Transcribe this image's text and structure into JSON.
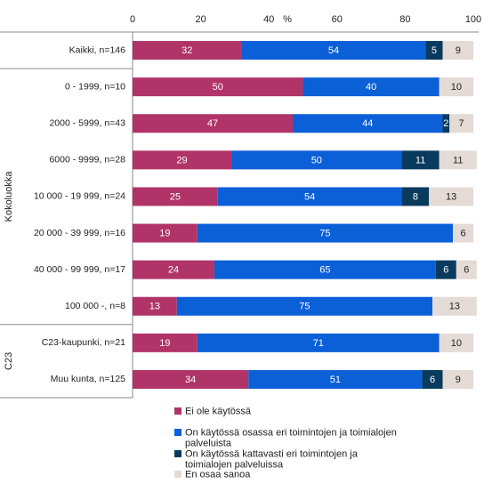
{
  "chart_data": {
    "type": "bar",
    "orientation": "horizontal",
    "stacked": true,
    "title": "",
    "xlabel": "%",
    "ylabel": "",
    "xlim": [
      0,
      100
    ],
    "x_ticks": [
      "0",
      "20",
      "40",
      "60",
      "80",
      "100"
    ],
    "grid": false,
    "legend_position": "bottom",
    "categories": [
      "Kaikki, n=146",
      "0 - 1999, n=10",
      "2000 - 5999, n=43",
      "6000 - 9999, n=28",
      "10 000 - 19 999, n=24",
      "20 000 - 39 999, n=16",
      "40 000 - 99 999, n=17",
      "100 000 -, n=8",
      "C23-kaupunki, n=21",
      "Muu kunta, n=125"
    ],
    "groups": [
      {
        "label": "Kokoluokka",
        "from": 1,
        "to": 7
      },
      {
        "label": "C23",
        "from": 8,
        "to": 9
      }
    ],
    "series": [
      {
        "name": "Ei ole käytössä",
        "color": "#b03468",
        "label_color": "#ffffff",
        "values": [
          32,
          50,
          47,
          29,
          25,
          19,
          24,
          13,
          19,
          34
        ]
      },
      {
        "name": "On käytössä osassa eri toimintojen ja toimialojen palveluista",
        "color": "#0b5fd7",
        "label_color": "#ffffff",
        "values": [
          54,
          40,
          44,
          50,
          54,
          75,
          65,
          75,
          71,
          51
        ]
      },
      {
        "name": "On käytössä kattavasti eri toimintojen ja toimialojen palveluissa",
        "color": "#0a3a5e",
        "label_color": "#ffffff",
        "values": [
          5,
          0,
          2,
          11,
          8,
          0,
          6,
          0,
          0,
          6
        ]
      },
      {
        "name": "En osaa sanoa",
        "color": "#e4dbd6",
        "label_color": "#222222",
        "values": [
          9,
          10,
          7,
          11,
          13,
          6,
          6,
          13,
          10,
          9
        ]
      }
    ]
  }
}
